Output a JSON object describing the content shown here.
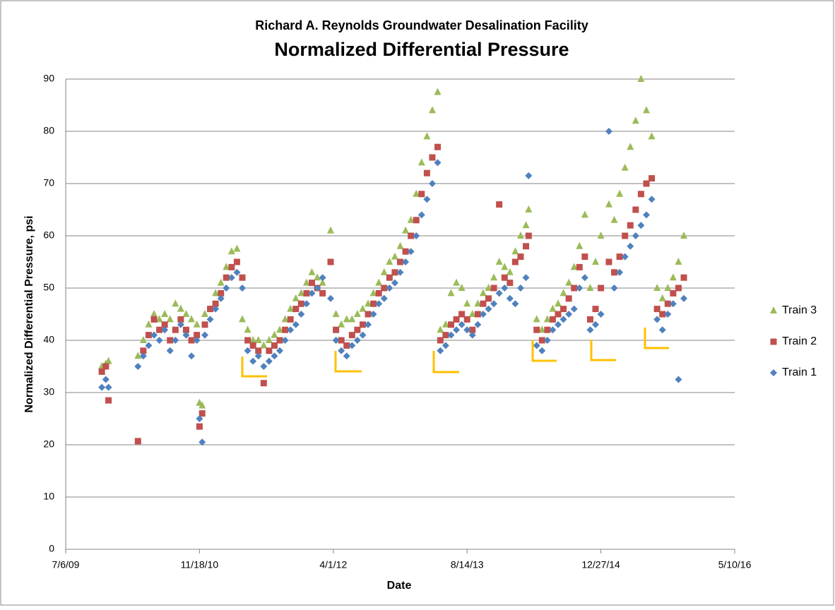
{
  "chart_data": {
    "type": "scatter",
    "title": "Richard A. Reynolds Groundwater Desalination Facility",
    "subtitle": "Normalized Differential Pressure",
    "x_label": "Date",
    "y_label": "Normalized Differential Pressure, psi",
    "xlim": [
      40000,
      42500
    ],
    "xticks": [
      {
        "value": 40000,
        "label": "7/6/09"
      },
      {
        "value": 40500,
        "label": "11/18/10"
      },
      {
        "value": 41000,
        "label": "4/1/12"
      },
      {
        "value": 41500,
        "label": "8/14/13"
      },
      {
        "value": 42000,
        "label": "12/27/14"
      },
      {
        "value": 42500,
        "label": "5/10/16"
      }
    ],
    "ylim": [
      0,
      90
    ],
    "yticks": [
      0,
      10,
      20,
      30,
      40,
      50,
      60,
      70,
      80,
      90
    ],
    "grid": true,
    "legend": "right",
    "x": [
      40135,
      40150,
      40160,
      40270,
      40290,
      40310,
      40330,
      40350,
      40370,
      40390,
      40410,
      40430,
      40450,
      40470,
      40490,
      40500,
      40510,
      40520,
      40540,
      40560,
      40580,
      40600,
      40620,
      40640,
      40660,
      40680,
      40700,
      40720,
      40740,
      40760,
      40780,
      40800,
      40820,
      40840,
      40860,
      40880,
      40900,
      40920,
      40940,
      40960,
      40990,
      41010,
      41030,
      41050,
      41070,
      41090,
      41110,
      41130,
      41150,
      41170,
      41190,
      41210,
      41230,
      41250,
      41270,
      41290,
      41310,
      41330,
      41350,
      41370,
      41390,
      41400,
      41420,
      41440,
      41460,
      41480,
      41500,
      41520,
      41540,
      41560,
      41580,
      41600,
      41620,
      41640,
      41660,
      41680,
      41700,
      41720,
      41730,
      41760,
      41780,
      41800,
      41820,
      41840,
      41860,
      41880,
      41900,
      41920,
      41940,
      41960,
      41980,
      42000,
      42030,
      42050,
      42070,
      42090,
      42110,
      42130,
      42150,
      42170,
      42190,
      42210,
      42230,
      42250,
      42270,
      42290,
      42310
    ],
    "series": [
      {
        "name": "Train 1",
        "color": "#4f81bd",
        "marker": "diamond",
        "values": [
          31,
          32.5,
          31,
          35,
          37,
          39,
          41,
          40,
          42,
          38,
          40,
          43,
          41,
          37,
          40,
          25,
          20.5,
          41,
          44,
          46,
          48,
          50,
          52,
          53,
          50,
          38,
          36,
          37,
          35,
          36,
          37,
          38,
          40,
          42,
          43,
          45,
          47,
          49,
          50,
          52,
          48,
          40,
          38,
          37,
          39,
          40,
          41,
          43,
          45,
          47,
          48,
          50,
          51,
          53,
          55,
          57,
          60,
          64,
          67,
          70,
          74,
          38,
          39,
          41,
          42,
          43,
          42,
          41,
          43,
          45,
          46,
          47,
          49,
          50,
          48,
          47,
          50,
          52,
          71.5,
          39,
          38,
          40,
          42,
          43,
          44,
          45,
          46,
          50,
          52,
          42,
          43,
          45,
          80,
          50,
          53,
          56,
          58,
          60,
          62,
          64,
          67,
          44,
          42,
          45,
          47,
          32.5,
          48
        ]
      },
      {
        "name": "Train 2",
        "color": "#c0504d",
        "marker": "square",
        "values": [
          34,
          35,
          28.5,
          20.7,
          38,
          41,
          44,
          42,
          43,
          40,
          42,
          44,
          42,
          40,
          41,
          23.5,
          26,
          43,
          46,
          47,
          49,
          52,
          54,
          55,
          52,
          40,
          39,
          38,
          31.8,
          38,
          39,
          40,
          42,
          44,
          46,
          47,
          49,
          51,
          50,
          49,
          55,
          42,
          40,
          39,
          41,
          42,
          43,
          45,
          47,
          49,
          50,
          52,
          53,
          55,
          57,
          60,
          63,
          68,
          72,
          75,
          77,
          40,
          41,
          43,
          44,
          45,
          44,
          42,
          45,
          47,
          48,
          50,
          66,
          52,
          51,
          55,
          56,
          58,
          60,
          42,
          40,
          42,
          44,
          45,
          46,
          48,
          50,
          54,
          56,
          44,
          46,
          50,
          55,
          53,
          56,
          60,
          62,
          65,
          68,
          70,
          71,
          46,
          45,
          47,
          49,
          50,
          52
        ]
      },
      {
        "name": "Train 3",
        "color": "#9bbb59",
        "marker": "triangle",
        "values": [
          35,
          35.5,
          36,
          37,
          40,
          43,
          45,
          44,
          45,
          44,
          47,
          46,
          45,
          44,
          43,
          28,
          27.5,
          45,
          46,
          49,
          51,
          54,
          57,
          57.5,
          44,
          42,
          40,
          40,
          39,
          40,
          41,
          42,
          44,
          46,
          48,
          49,
          51,
          53,
          52,
          51,
          61,
          45,
          43,
          44,
          44,
          45,
          46,
          47,
          49,
          51,
          53,
          55,
          56,
          58,
          61,
          63,
          68,
          74,
          79,
          84,
          87.5,
          42,
          43,
          49,
          51,
          50,
          47,
          45,
          47,
          49,
          50,
          52,
          55,
          54,
          53,
          57,
          60,
          62,
          65,
          44,
          42,
          44,
          46,
          47,
          49,
          51,
          54,
          58,
          64,
          50,
          55,
          60,
          66,
          63,
          68,
          73,
          77,
          82,
          90,
          84,
          79,
          50,
          48,
          50,
          52,
          55,
          60
        ]
      }
    ]
  }
}
